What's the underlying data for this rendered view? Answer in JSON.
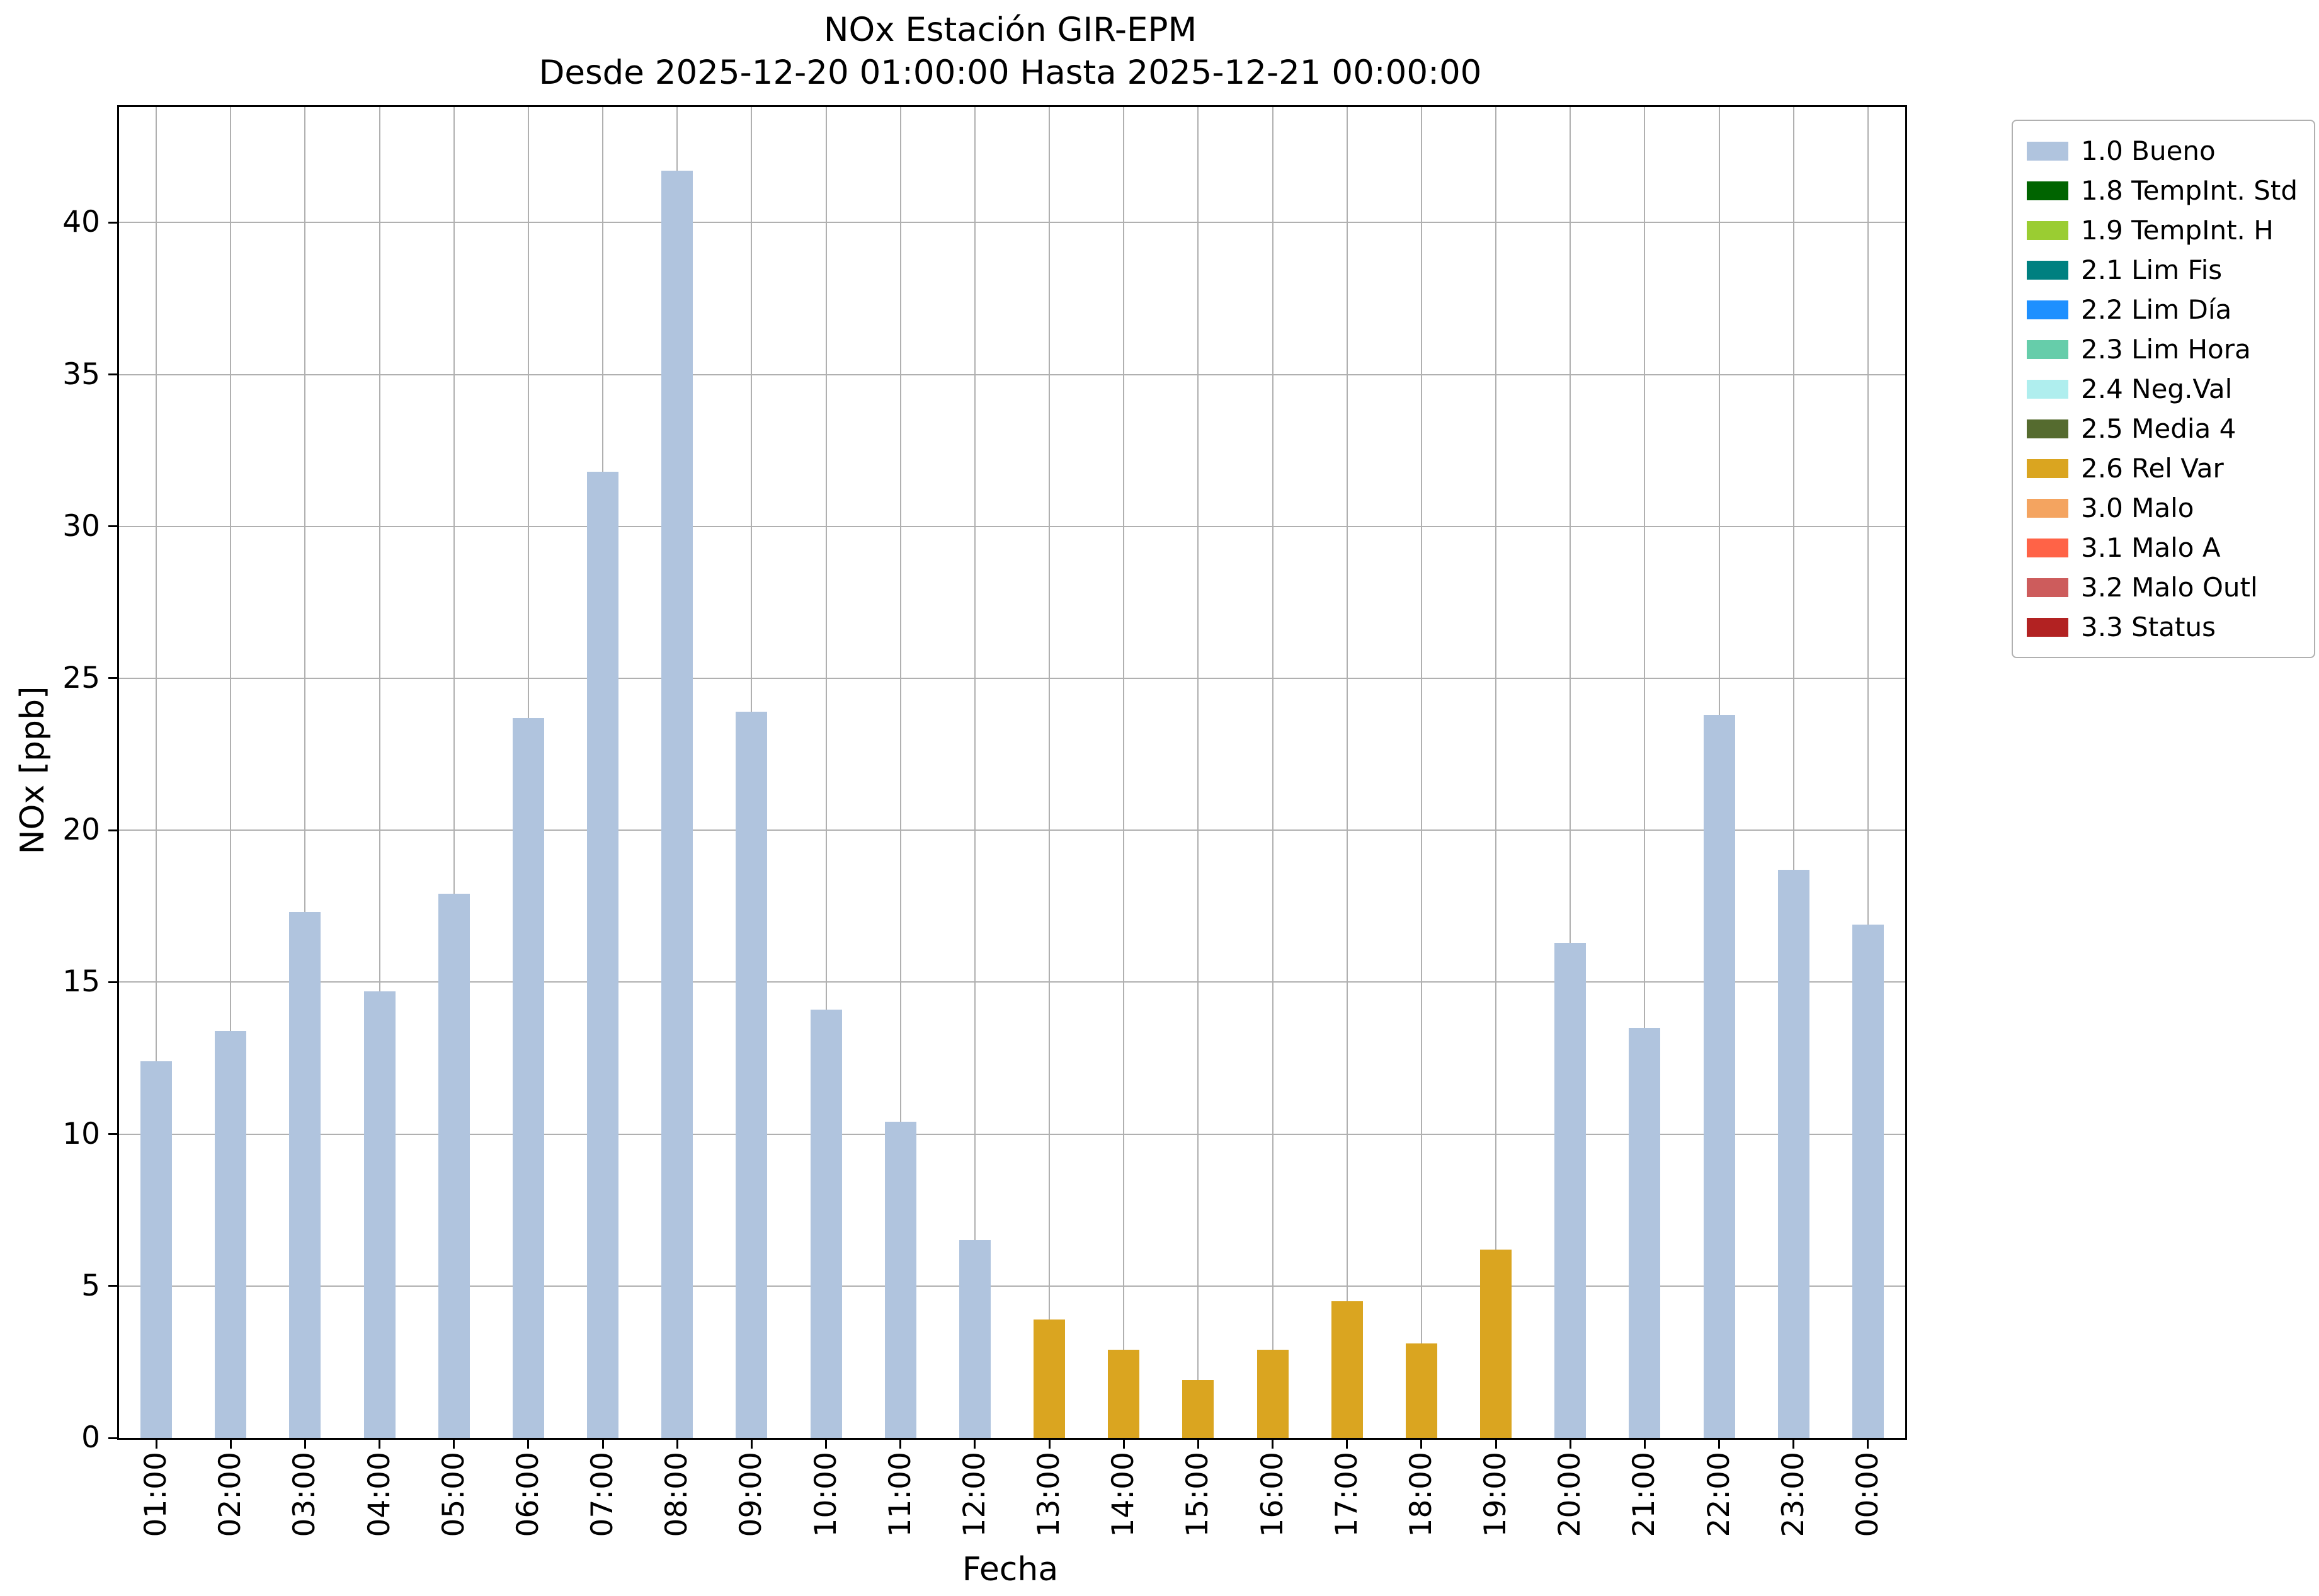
{
  "chart_data": {
    "type": "bar",
    "title": "NOx Estación GIR-EPM",
    "subtitle": "Desde 2025-12-20 01:00:00 Hasta 2025-12-21 00:00:00",
    "xlabel": "Fecha",
    "ylabel": "NOx [ppb]",
    "ylim": [
      0,
      43.8
    ],
    "yticks": [
      0,
      5,
      10,
      15,
      20,
      25,
      30,
      35,
      40
    ],
    "grid": true,
    "legend_position": "outside upper right",
    "categories": [
      "01:00",
      "02:00",
      "03:00",
      "04:00",
      "05:00",
      "06:00",
      "07:00",
      "08:00",
      "09:00",
      "10:00",
      "11:00",
      "12:00",
      "13:00",
      "14:00",
      "15:00",
      "16:00",
      "17:00",
      "18:00",
      "19:00",
      "20:00",
      "21:00",
      "22:00",
      "23:00",
      "00:00"
    ],
    "values": [
      12.4,
      13.4,
      17.3,
      14.7,
      17.9,
      23.7,
      31.8,
      41.7,
      23.9,
      14.1,
      10.4,
      6.5,
      3.9,
      2.9,
      1.9,
      2.9,
      4.5,
      3.1,
      6.2,
      16.3,
      13.5,
      23.8,
      18.7,
      16.9
    ],
    "bar_status": [
      "1.0 Bueno",
      "1.0 Bueno",
      "1.0 Bueno",
      "1.0 Bueno",
      "1.0 Bueno",
      "1.0 Bueno",
      "1.0 Bueno",
      "1.0 Bueno",
      "1.0 Bueno",
      "1.0 Bueno",
      "1.0 Bueno",
      "1.0 Bueno",
      "2.6 Rel Var",
      "2.6 Rel Var",
      "2.6 Rel Var",
      "2.6 Rel Var",
      "2.6 Rel Var",
      "2.6 Rel Var",
      "2.6 Rel Var",
      "1.0 Bueno",
      "1.0 Bueno",
      "1.0 Bueno",
      "1.0 Bueno",
      "1.0 Bueno"
    ],
    "status_colors": {
      "1.0 Bueno": "#b0c4de",
      "2.6 Rel Var": "#daa520"
    },
    "legend": [
      {
        "label": "1.0 Bueno",
        "color": "#b0c4de"
      },
      {
        "label": "1.8 TempInt. Std",
        "color": "#006400"
      },
      {
        "label": "1.9 TempInt. H",
        "color": "#9acd32"
      },
      {
        "label": "2.1 Lim Fis",
        "color": "#008080"
      },
      {
        "label": "2.2 Lim Día",
        "color": "#1e90ff"
      },
      {
        "label": "2.3 Lim Hora",
        "color": "#66cdaa"
      },
      {
        "label": "2.4 Neg.Val",
        "color": "#afeeee"
      },
      {
        "label": "2.5 Media 4",
        "color": "#556b2f"
      },
      {
        "label": "2.6 Rel Var",
        "color": "#daa520"
      },
      {
        "label": "3.0 Malo",
        "color": "#f4a460"
      },
      {
        "label": "3.1 Malo A",
        "color": "#ff6347"
      },
      {
        "label": "3.2 Malo Outl",
        "color": "#cd5c5c"
      },
      {
        "label": "3.3 Status",
        "color": "#b22222"
      }
    ]
  }
}
